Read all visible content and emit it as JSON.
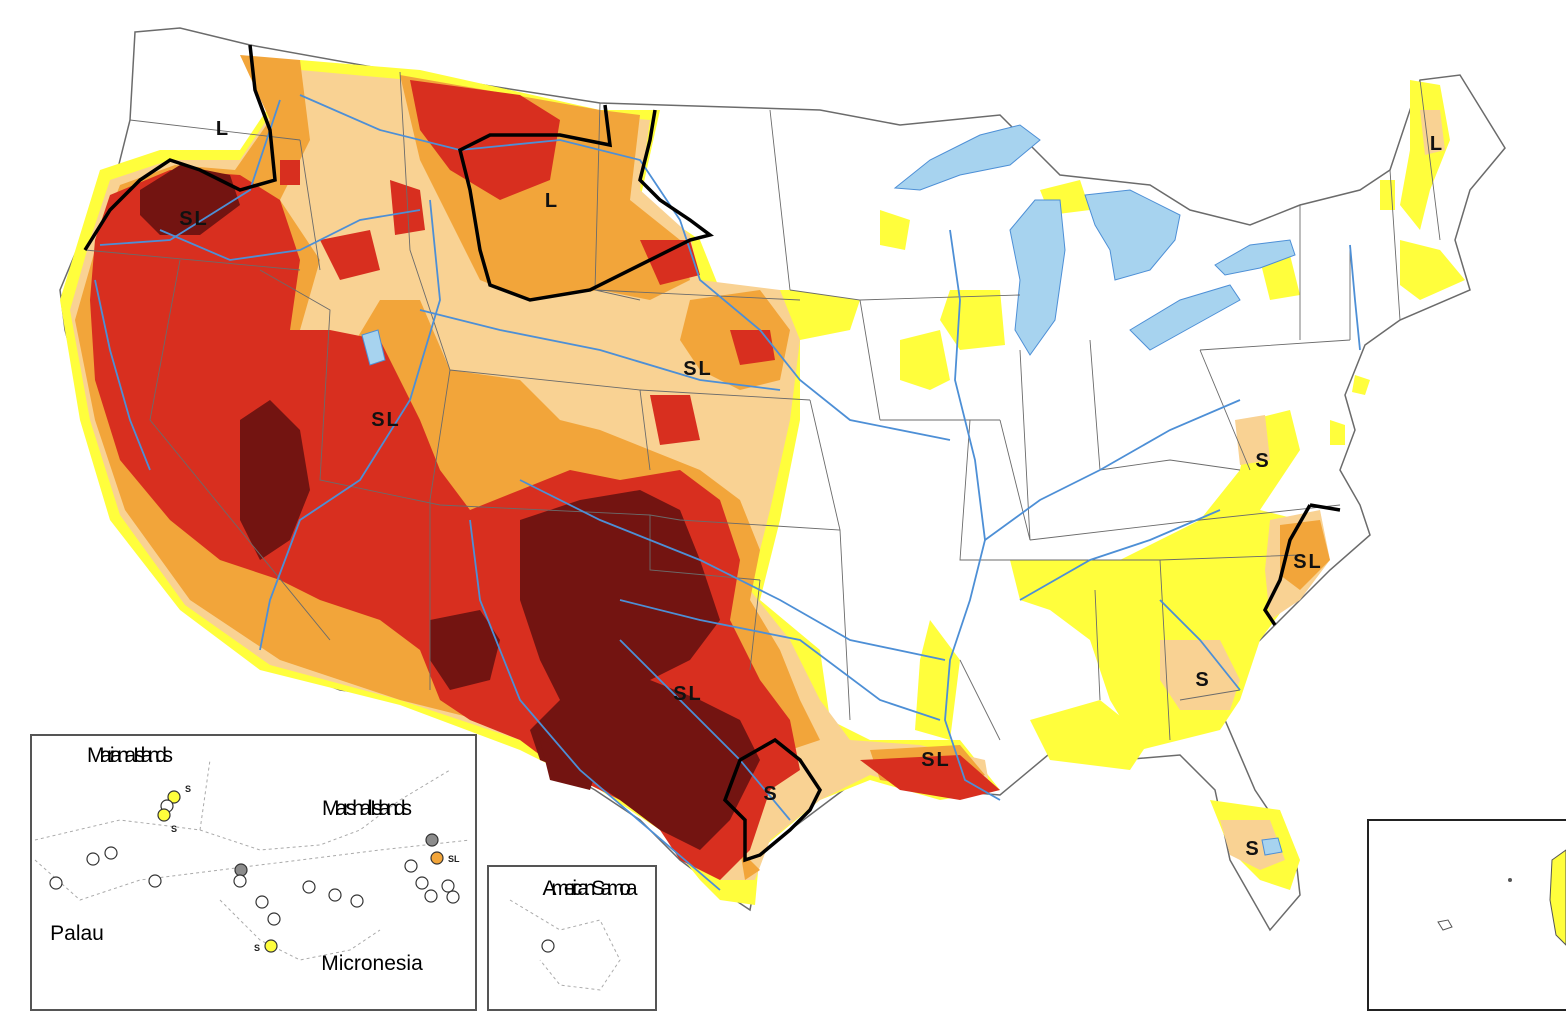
{
  "map": {
    "colors": {
      "background": "#ffffff",
      "water": "#a7d3ef",
      "river": "#4d8fd6",
      "border": "#6b6b6b",
      "boundary": "#000000",
      "d0": "#fffe3c",
      "d1": "#f9d293",
      "d2": "#f2a53a",
      "d3": "#d82f1f",
      "d4": "#731411",
      "no_drought": "#ffffff",
      "no_data": "#8c8c8c"
    },
    "impact_labels": [
      "L",
      "SL",
      "L",
      "SL",
      "SL",
      "SL",
      "SL",
      "S",
      "S",
      "SL",
      "S",
      "S",
      "L"
    ],
    "insets": {
      "pacific": {
        "labels": [
          "Mariana Islands",
          "Marshall Islands",
          "Palau",
          "Micronesia"
        ],
        "island_labels": [
          "S",
          "S",
          "SL",
          "S"
        ]
      },
      "samoa": {
        "labels": [
          "American Samoa"
        ]
      }
    }
  }
}
